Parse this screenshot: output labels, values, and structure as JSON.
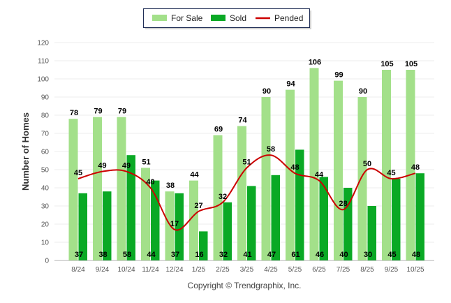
{
  "chart_data": {
    "type": "bar",
    "title": "",
    "xlabel": "",
    "ylabel": "Number of Homes",
    "ylim": [
      0,
      120
    ],
    "yticks": [
      0,
      10,
      20,
      30,
      40,
      50,
      60,
      70,
      80,
      90,
      100,
      110,
      120
    ],
    "grid": true,
    "legend_position": "top-center",
    "categories": [
      "8/24",
      "9/24",
      "10/24",
      "11/24",
      "12/24",
      "1/25",
      "2/25",
      "3/25",
      "4/25",
      "5/25",
      "6/25",
      "7/25",
      "8/25",
      "9/25",
      "10/25"
    ],
    "series": [
      {
        "name": "For Sale",
        "type": "bar",
        "color": "#a3e08a",
        "values": [
          78,
          79,
          79,
          51,
          38,
          44,
          69,
          74,
          90,
          94,
          106,
          99,
          90,
          105,
          105
        ]
      },
      {
        "name": "Sold",
        "type": "bar",
        "color": "#0aa925",
        "values": [
          37,
          38,
          58,
          44,
          37,
          16,
          32,
          41,
          47,
          61,
          46,
          40,
          30,
          45,
          48
        ]
      },
      {
        "name": "Pended",
        "type": "line",
        "color": "#cc0000",
        "values": [
          45,
          49,
          49,
          40,
          17,
          27,
          32,
          51,
          58,
          48,
          44,
          28,
          50,
          45,
          48
        ]
      }
    ],
    "annotation": "Copyright © Trendgraphix, Inc."
  }
}
